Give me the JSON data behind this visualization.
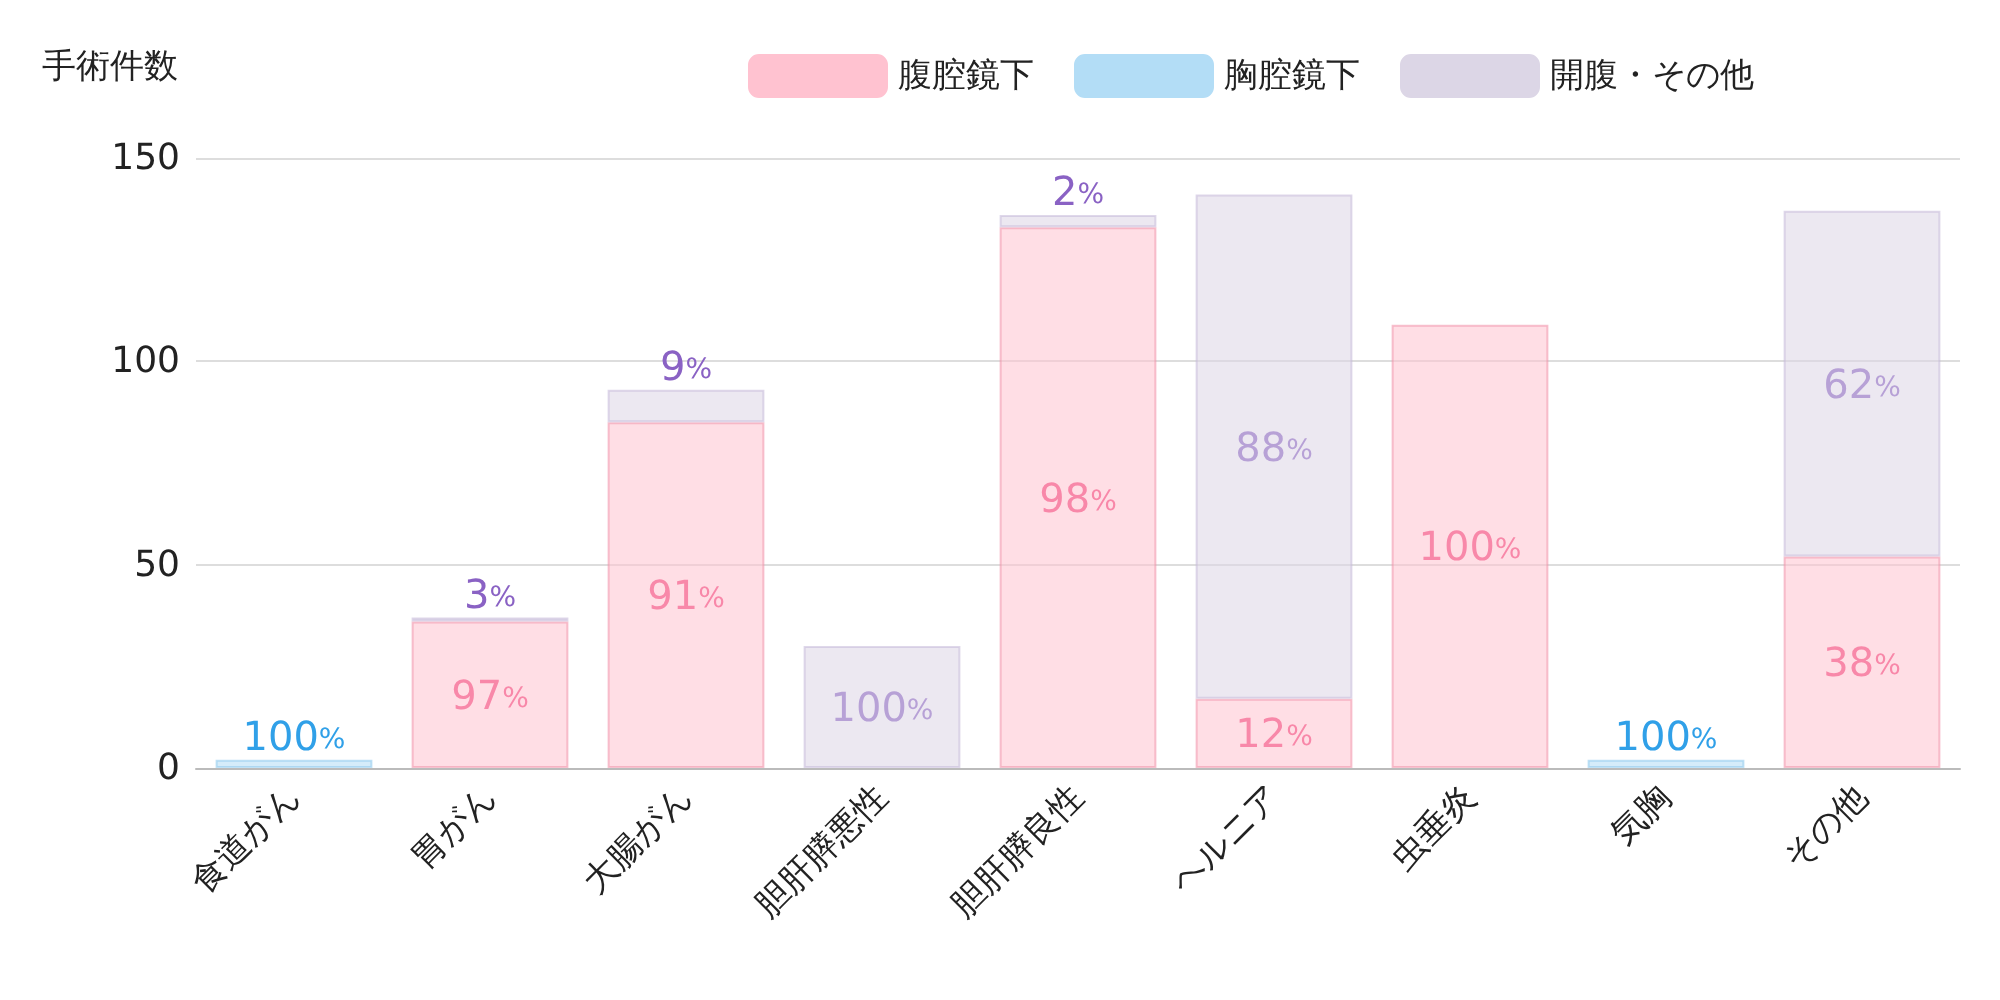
{
  "chart_data": {
    "type": "bar",
    "ylabel": "手術件数",
    "stacked": true,
    "categories": [
      "食道がん",
      "胃がん",
      "大腸がん",
      "胆肝膵悪性",
      "胆肝膵良性",
      "ヘルニア",
      "虫垂炎",
      "気胸",
      "その他"
    ],
    "series": [
      {
        "name": "腹腔鏡下",
        "color": "#ffc2d0",
        "values": [
          null,
          36,
          85,
          null,
          133,
          17,
          109,
          null,
          52
        ]
      },
      {
        "name": "胸腔鏡下",
        "color": "#b3ddf6",
        "values": [
          2,
          null,
          null,
          null,
          null,
          null,
          null,
          2,
          null
        ]
      },
      {
        "name": "開腹・その他",
        "color": "#dcd6e6",
        "values": [
          null,
          1,
          8,
          30,
          3,
          124,
          null,
          null,
          85
        ]
      }
    ],
    "annotations": [
      "100%",
      "97%",
      "3%",
      "91%",
      "9%",
      "100%",
      "98%",
      "2%",
      "12%",
      "88%",
      "100%",
      "100%",
      "38%",
      "62%"
    ],
    "ylim": [
      0,
      150
    ],
    "yticks": [
      0,
      50,
      100,
      150
    ],
    "grid": "y",
    "legend": "top right"
  }
}
